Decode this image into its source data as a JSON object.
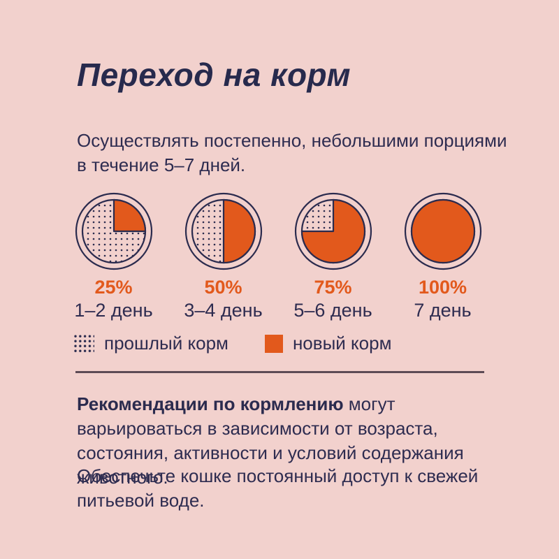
{
  "colors": {
    "background": "#f2d1cd",
    "navy": "#2b2b4e",
    "orange": "#e2591c",
    "divider": "#5d4b55"
  },
  "title": "Переход на корм",
  "subtitle": "Осуществлять постепенно, небольшими порциями\nв течение 5–7 дней.",
  "chart_data": {
    "type": "pie",
    "title": "Переход на корм",
    "stages": [
      {
        "percent": "25%",
        "fraction": 0.25,
        "days": "1–2 день"
      },
      {
        "percent": "50%",
        "fraction": 0.5,
        "days": "3–4 день"
      },
      {
        "percent": "75%",
        "fraction": 0.75,
        "days": "5–6 день"
      },
      {
        "percent": "100%",
        "fraction": 1.0,
        "days": "7 день"
      }
    ],
    "legend": [
      {
        "swatch": "dots",
        "label": "прошлый корм"
      },
      {
        "swatch": "solid-orange",
        "label": "новый корм"
      }
    ],
    "legend_position": "below"
  },
  "notes": {
    "recommendation_bold": "Рекомендации по кормлению",
    "recommendation_text": " могут варьироваться в зависимости от возраста, состояния, активности и условий содержания животного.",
    "water": "Обеспечьте кошке постоянный доступ к свежей\nпитьевой воде."
  }
}
